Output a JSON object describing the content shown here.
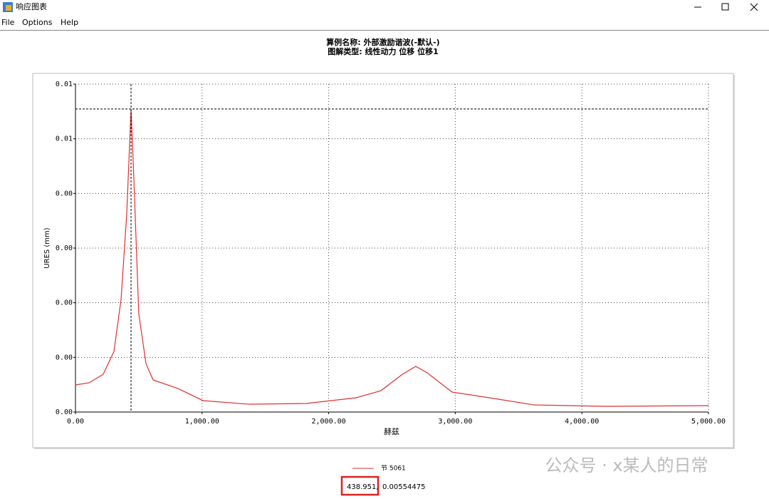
{
  "window": {
    "title": "响应图表",
    "menu": [
      "File",
      "Options",
      "Help"
    ],
    "watermark": "公众号 · x某人的日常"
  },
  "chart_data": {
    "type": "line",
    "title": "算例名称: 外部激励谐波(-默认-)",
    "subtitle": "图解类型: 线性动力 位移 位移1",
    "x_label": "赫兹",
    "y_label": "URES (mm)",
    "x": [
      0,
      107,
      219,
      304,
      360,
      405,
      438.951,
      461,
      500,
      557,
      613,
      810,
      1007,
      1372,
      1822,
      2216,
      2413,
      2582,
      2688,
      2778,
      2975,
      3341,
      3622,
      4184,
      5000
    ],
    "series": [
      {
        "name": "节 5061",
        "color": "#e03030",
        "values": [
          0.000496,
          0.000535,
          0.00069,
          0.00111,
          0.00206,
          0.00363,
          0.00554475,
          0.00428,
          0.0018,
          0.000887,
          0.000587,
          0.00043,
          0.000209,
          0.000143,
          0.000157,
          0.000261,
          0.000391,
          0.00069,
          0.000835,
          0.000717,
          0.000365,
          0.000235,
          0.00013,
          0.000104,
          0.000117
        ]
      }
    ],
    "xlim": [
      0,
      5000
    ],
    "xticks": [
      {
        "value": 0,
        "label": "0.00"
      },
      {
        "value": 1000,
        "label": "1,000.00"
      },
      {
        "value": 2000,
        "label": "2,000.00"
      },
      {
        "value": 3000,
        "label": "3,000.00"
      },
      {
        "value": 4000,
        "label": "4,000.00"
      },
      {
        "value": 5000,
        "label": "5,000.00"
      }
    ],
    "ylim": [
      0,
      0.006
    ],
    "yticks": [
      {
        "value": 0,
        "label": "0.00"
      },
      {
        "value": 0.001,
        "label": "0.00"
      },
      {
        "value": 0.002,
        "label": "0.00"
      },
      {
        "value": 0.003,
        "label": "0.00"
      },
      {
        "value": 0.004,
        "label": "0.00"
      },
      {
        "value": 0.005,
        "label": "0.01"
      },
      {
        "value": 0.006,
        "label": "0.01"
      }
    ],
    "grid": true,
    "cursor": {
      "x": {
        "value": 438.951,
        "label": "438.951,"
      },
      "y": 0.00554475
    }
  }
}
